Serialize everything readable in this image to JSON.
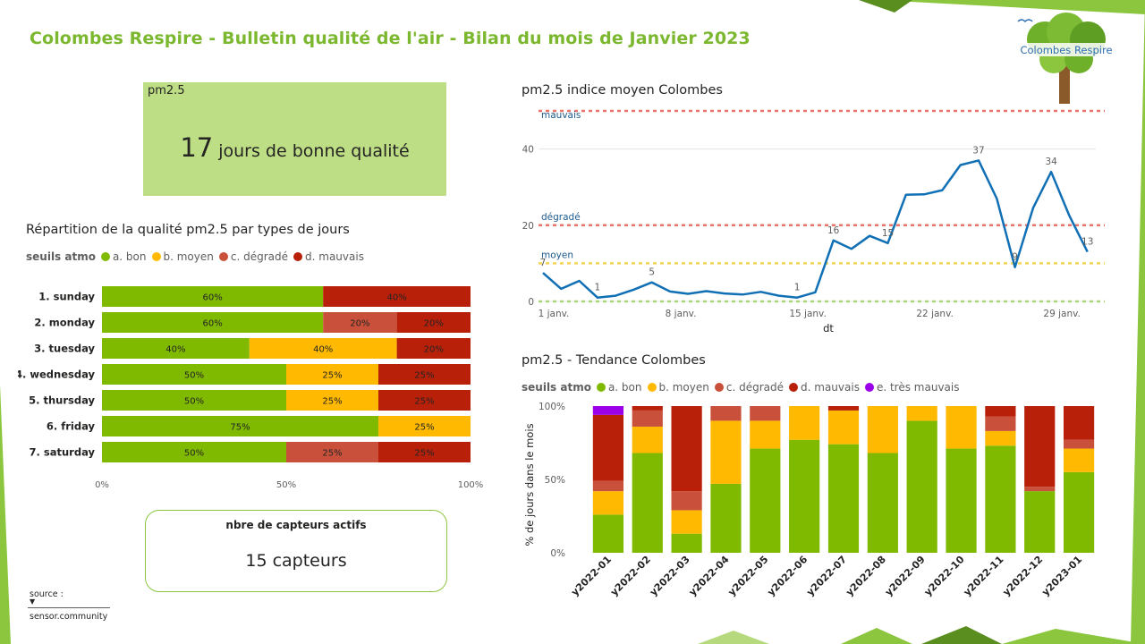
{
  "title": "Colombes Respire - Bulletin qualité de l'air - Bilan du mois de Janvier 2023",
  "logo": {
    "text": "Colombes Respire"
  },
  "kpi": {
    "label": "pm2.5",
    "value": "17",
    "unit_text": "jours de bonne qualité"
  },
  "sensors": {
    "label": "nbre de capteurs actifs",
    "value": "15 capteurs"
  },
  "source": {
    "label": "source :",
    "value": "sensor.community"
  },
  "colors": {
    "bon": "#7fba00",
    "moyen": "#ffb900",
    "degrade": "#c9503a",
    "mauvais": "#b8200a",
    "tres_mauvais": "#9b00e8",
    "brand": "#7cb82f",
    "line": "#1170b5"
  },
  "legend_atmo": {
    "title": "seuils atmo",
    "items": [
      "a. bon",
      "b. moyen",
      "c. dégradé",
      "d. mauvais"
    ]
  },
  "legend_trend": {
    "title": "seuils atmo",
    "items": [
      "a. bon",
      "b. moyen",
      "c. dégradé",
      "d. mauvais",
      "e. très mauvais"
    ]
  },
  "chart_data": [
    {
      "id": "weekday",
      "type": "bar",
      "orientation": "horizontal",
      "stacked": "100%",
      "title": "Répartition de la qualité pm2.5 par types de jours",
      "categories": [
        "1. sunday",
        "2. monday",
        "3. tuesday",
        "4. wednesday",
        "5. thursday",
        "6. friday",
        "7. saturday"
      ],
      "series": [
        {
          "name": "a. bon",
          "values": [
            60,
            60,
            40,
            50,
            50,
            75,
            50
          ]
        },
        {
          "name": "b. moyen",
          "values": [
            0,
            0,
            40,
            25,
            25,
            25,
            0
          ]
        },
        {
          "name": "c. dégradé",
          "values": [
            0,
            20,
            0,
            0,
            0,
            0,
            25
          ]
        },
        {
          "name": "d. mauvais",
          "values": [
            40,
            20,
            20,
            25,
            25,
            0,
            25
          ]
        }
      ],
      "xticks": [
        "0%",
        "50%",
        "100%"
      ],
      "xlim": [
        0,
        100
      ]
    },
    {
      "id": "daily",
      "type": "line",
      "title": "pm2.5 indice moyen Colombes",
      "xlabel": "dt",
      "ylabel": "",
      "x": [
        1,
        2,
        3,
        4,
        5,
        6,
        7,
        8,
        9,
        10,
        11,
        12,
        13,
        14,
        15,
        16,
        17,
        18,
        19,
        20,
        21,
        22,
        23,
        24,
        25,
        26,
        27,
        28,
        29,
        30,
        31
      ],
      "values": [
        7.5,
        3.3,
        5.4,
        1.0,
        1.5,
        3.1,
        5.0,
        2.6,
        2.0,
        2.7,
        2.1,
        1.8,
        2.5,
        1.5,
        1.0,
        2.4,
        16.0,
        13.8,
        17.2,
        15.3,
        28.0,
        28.1,
        29.2,
        35.8,
        37.0,
        27.0,
        9.0,
        24.5,
        34.0,
        22.5,
        13.0
      ],
      "point_labels": [
        {
          "day": 1,
          "text": "7"
        },
        {
          "day": 4,
          "text": "1"
        },
        {
          "day": 7,
          "text": "5"
        },
        {
          "day": 15,
          "text": "1"
        },
        {
          "day": 17,
          "text": "16"
        },
        {
          "day": 20,
          "text": "15"
        },
        {
          "day": 25,
          "text": "37"
        },
        {
          "day": 27,
          "text": "9"
        },
        {
          "day": 29,
          "text": "34"
        },
        {
          "day": 31,
          "text": "13"
        }
      ],
      "xticks": [
        {
          "day": 1,
          "label": "1 janv."
        },
        {
          "day": 8,
          "label": "8 janv."
        },
        {
          "day": 15,
          "label": "15 janv."
        },
        {
          "day": 22,
          "label": "22 janv."
        },
        {
          "day": 29,
          "label": "29 janv."
        }
      ],
      "yticks": [
        0,
        20,
        40
      ],
      "ylim": [
        0,
        50
      ],
      "thresholds": [
        {
          "label": "mauvais",
          "value": 50
        },
        {
          "label": "dégradé",
          "value": 20
        },
        {
          "label": "moyen",
          "value": 10
        },
        {
          "label": "",
          "value": 0
        }
      ]
    },
    {
      "id": "monthly",
      "type": "bar",
      "orientation": "vertical",
      "stacked": "100%",
      "title": "pm2.5 - Tendance Colombes",
      "ylabel": "% de jours dans le mois",
      "categories": [
        "y2022-01",
        "y2022-02",
        "y2022-03",
        "y2022-04",
        "y2022-05",
        "y2022-06",
        "y2022-07",
        "y2022-08",
        "y2022-09",
        "y2022-10",
        "y2022-11",
        "y2022-12",
        "y2023-01"
      ],
      "series": [
        {
          "name": "a. bon",
          "values": [
            26,
            68,
            13,
            47,
            71,
            77,
            74,
            68,
            90,
            71,
            73,
            42,
            55
          ]
        },
        {
          "name": "b. moyen",
          "values": [
            16,
            18,
            16,
            43,
            19,
            23,
            23,
            32,
            10,
            29,
            10,
            0,
            16
          ]
        },
        {
          "name": "c. dégradé",
          "values": [
            7,
            11,
            13,
            10,
            10,
            0,
            0,
            0,
            0,
            0,
            10,
            3,
            6
          ]
        },
        {
          "name": "d. mauvais",
          "values": [
            45,
            3,
            58,
            0,
            0,
            0,
            3,
            0,
            0,
            0,
            7,
            55,
            23
          ]
        },
        {
          "name": "e. très mauvais",
          "values": [
            6,
            0,
            0,
            0,
            0,
            0,
            0,
            0,
            0,
            0,
            0,
            0,
            0
          ]
        }
      ],
      "yticks": [
        "0%",
        "50%",
        "100%"
      ],
      "ylim": [
        0,
        100
      ]
    }
  ]
}
